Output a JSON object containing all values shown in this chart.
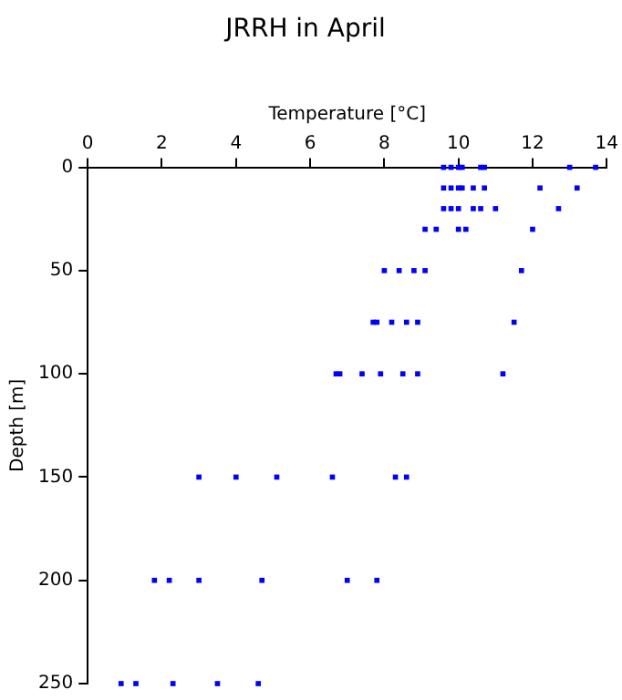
{
  "chart_data": {
    "type": "scatter",
    "title": "JRRH in April",
    "xlabel": "Temperature [°C]",
    "ylabel": "Depth [m]",
    "x": [
      9.6,
      9.8,
      10.0,
      10.1,
      10.6,
      10.7,
      13.0,
      13.7,
      9.6,
      9.8,
      10.0,
      10.1,
      10.4,
      10.7,
      12.2,
      13.2,
      9.6,
      9.8,
      10.0,
      10.4,
      10.6,
      11.0,
      12.7,
      9.1,
      9.4,
      10.0,
      10.2,
      12.0,
      8.0,
      8.4,
      8.8,
      9.1,
      11.7,
      7.7,
      7.8,
      8.2,
      8.6,
      8.9,
      11.5,
      6.7,
      6.8,
      7.4,
      7.9,
      8.5,
      8.9,
      11.2,
      3.0,
      4.0,
      5.1,
      6.6,
      8.3,
      8.6,
      1.8,
      2.2,
      3.0,
      4.7,
      7.0,
      7.8,
      0.9,
      1.3,
      2.3,
      3.5,
      4.6
    ],
    "values": [
      0,
      0,
      0,
      0,
      0,
      0,
      0,
      0,
      10,
      10,
      10,
      10,
      10,
      10,
      10,
      10,
      20,
      20,
      20,
      20,
      20,
      20,
      20,
      30,
      30,
      30,
      30,
      30,
      50,
      50,
      50,
      50,
      50,
      75,
      75,
      75,
      75,
      75,
      75,
      100,
      100,
      100,
      100,
      100,
      100,
      100,
      150,
      150,
      150,
      150,
      150,
      150,
      200,
      200,
      200,
      200,
      200,
      200,
      250,
      250,
      250,
      250,
      250
    ],
    "color": "#0000ff",
    "marker": "square",
    "xlim": [
      0,
      14
    ],
    "xticks": [
      0,
      2,
      4,
      6,
      8,
      10,
      12,
      14
    ],
    "ylim": [
      250,
      0
    ],
    "yticks": [
      0,
      50,
      100,
      150,
      200,
      250
    ],
    "grid": false,
    "legend": false
  }
}
